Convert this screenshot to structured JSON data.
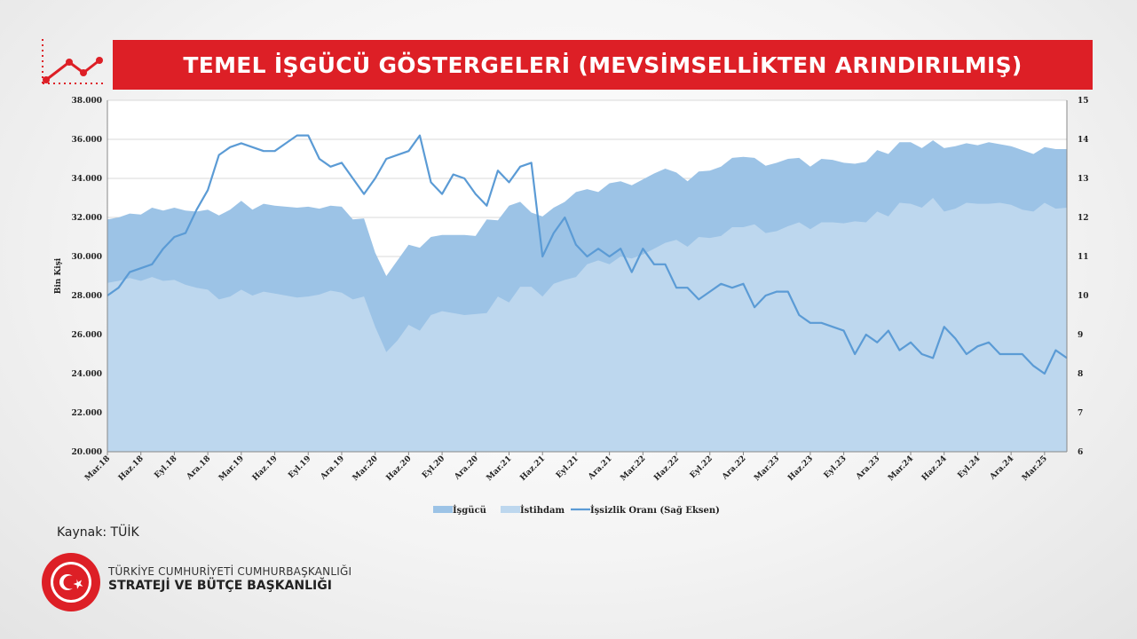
{
  "header": {
    "title": "TEMEL İŞGÜCÜ GÖSTERGELERİ (MEVSİMSELLİKTEN ARINDIRILMIŞ)",
    "icon": "trend-line-icon"
  },
  "source_text": "Kaynak: TÜİK",
  "organization": {
    "line1": "TÜRKİYE CUMHURİYETİ CUMHURBAŞKANLIĞI",
    "line2": "STRATEJİ VE BÜTÇE BAŞKANLIĞI",
    "logo": "sbb-seal-logo",
    "seal_text": "T.C. CUMHURBAŞKANLIĞI STRATEJİ VE BÜTÇE BAŞKANLIĞI"
  },
  "colors": {
    "title_bar": "#dd1f26",
    "labor_force": "#9cc3e6",
    "employment": "#bdd7ee",
    "unemployment": "#5b9bd5"
  },
  "chart_data": {
    "type": "area",
    "xlabel": "",
    "ylabel": "Bin Kişi",
    "y2label": "",
    "ylim": [
      20000,
      38000
    ],
    "y_ticks": [
      "20.000",
      "22.000",
      "24.000",
      "26.000",
      "28.000",
      "30.000",
      "32.000",
      "34.000",
      "36.000",
      "38.000"
    ],
    "y2lim": [
      6,
      15
    ],
    "y2_ticks": [
      "6",
      "7",
      "8",
      "9",
      "10",
      "11",
      "12",
      "13",
      "14",
      "15"
    ],
    "grid": true,
    "legend_position": "bottom",
    "x_tick_labels": [
      "Mar.18",
      "Haz.18",
      "Eyl.18",
      "Ara.18",
      "Mar.19",
      "Haz.19",
      "Eyl.19",
      "Ara.19",
      "Mar.20",
      "Haz.20",
      "Eyl.20",
      "Ara.20",
      "Mar.21",
      "Haz.21",
      "Eyl.21",
      "Ara.21",
      "Mar.22",
      "Haz.22",
      "Eyl.22",
      "Ara.22",
      "Mar.23",
      "Haz.23",
      "Eyl.23",
      "Ara.23",
      "Mar.24",
      "Haz.24",
      "Eyl.24",
      "Ara.24",
      "Mar.25"
    ],
    "x_tick_every": 3,
    "series": [
      {
        "name": "İşgücü",
        "kind": "area",
        "axis": "left",
        "values": [
          31900,
          32000,
          32200,
          32150,
          32500,
          32350,
          32500,
          32350,
          32300,
          32400,
          32100,
          32400,
          32850,
          32400,
          32700,
          32600,
          32550,
          32500,
          32550,
          32450,
          32600,
          32550,
          31900,
          31950,
          30200,
          29000,
          29800,
          30600,
          30450,
          31000,
          31100,
          31100,
          31100,
          31050,
          31900,
          31850,
          32600,
          32800,
          32250,
          32050,
          32500,
          32800,
          33300,
          33450,
          33300,
          33750,
          33850,
          33650,
          33950,
          34250,
          34500,
          34300,
          33850,
          34350,
          34400,
          34600,
          35050,
          35100,
          35050,
          34650,
          34800,
          35000,
          35050,
          34600,
          35000,
          34950,
          34800,
          34750,
          34850,
          35450,
          35250,
          35850,
          35850,
          35550,
          35950,
          35550,
          35650,
          35800,
          35700,
          35850,
          35750,
          35650,
          35450,
          35250,
          35600,
          35500,
          35500
        ]
      },
      {
        "name": "İstihdam",
        "kind": "area",
        "axis": "left",
        "values": [
          28650,
          28750,
          28900,
          28750,
          28950,
          28750,
          28800,
          28550,
          28400,
          28300,
          27800,
          27950,
          28300,
          28000,
          28200,
          28100,
          28000,
          27900,
          27950,
          28050,
          28250,
          28150,
          27800,
          27950,
          26400,
          25100,
          25700,
          26500,
          26200,
          27000,
          27200,
          27100,
          27000,
          27050,
          27100,
          27950,
          27650,
          28450,
          28450,
          27950,
          28600,
          28800,
          28950,
          29600,
          29800,
          29600,
          30000,
          29900,
          30100,
          30400,
          30700,
          30850,
          30500,
          31000,
          30950,
          31050,
          31500,
          31500,
          31650,
          31200,
          31300,
          31550,
          31750,
          31400,
          31750,
          31750,
          31700,
          31800,
          31750,
          32300,
          32050,
          32750,
          32700,
          32500,
          33000,
          32300,
          32450,
          32750,
          32700,
          32700,
          32750,
          32650,
          32400,
          32300,
          32750,
          32450,
          32500
        ]
      },
      {
        "name": "İşsizlik Oranı (Sağ Eksen)",
        "kind": "line",
        "axis": "right",
        "values": [
          10.0,
          10.2,
          10.6,
          10.7,
          10.8,
          11.2,
          11.5,
          11.6,
          12.2,
          12.7,
          13.6,
          13.8,
          13.9,
          13.8,
          13.7,
          13.7,
          13.9,
          14.1,
          14.1,
          13.5,
          13.3,
          13.4,
          13.0,
          12.6,
          13.0,
          13.5,
          13.6,
          13.7,
          14.1,
          12.9,
          12.6,
          13.1,
          13.0,
          12.6,
          12.3,
          13.2,
          12.9,
          13.3,
          13.4,
          11.0,
          11.6,
          12.0,
          11.3,
          11.0,
          11.2,
          11.0,
          11.2,
          10.6,
          11.2,
          10.8,
          10.8,
          10.2,
          10.2,
          9.9,
          10.1,
          10.3,
          10.2,
          10.3,
          9.7,
          10.0,
          10.1,
          10.1,
          9.5,
          9.3,
          9.3,
          9.2,
          9.1,
          8.5,
          9.0,
          8.8,
          9.1,
          8.6,
          8.8,
          8.5,
          8.4,
          9.2,
          8.9,
          8.5,
          8.7,
          8.8,
          8.5,
          8.5,
          8.5,
          8.2,
          8.0,
          8.6,
          8.4
        ]
      }
    ]
  }
}
